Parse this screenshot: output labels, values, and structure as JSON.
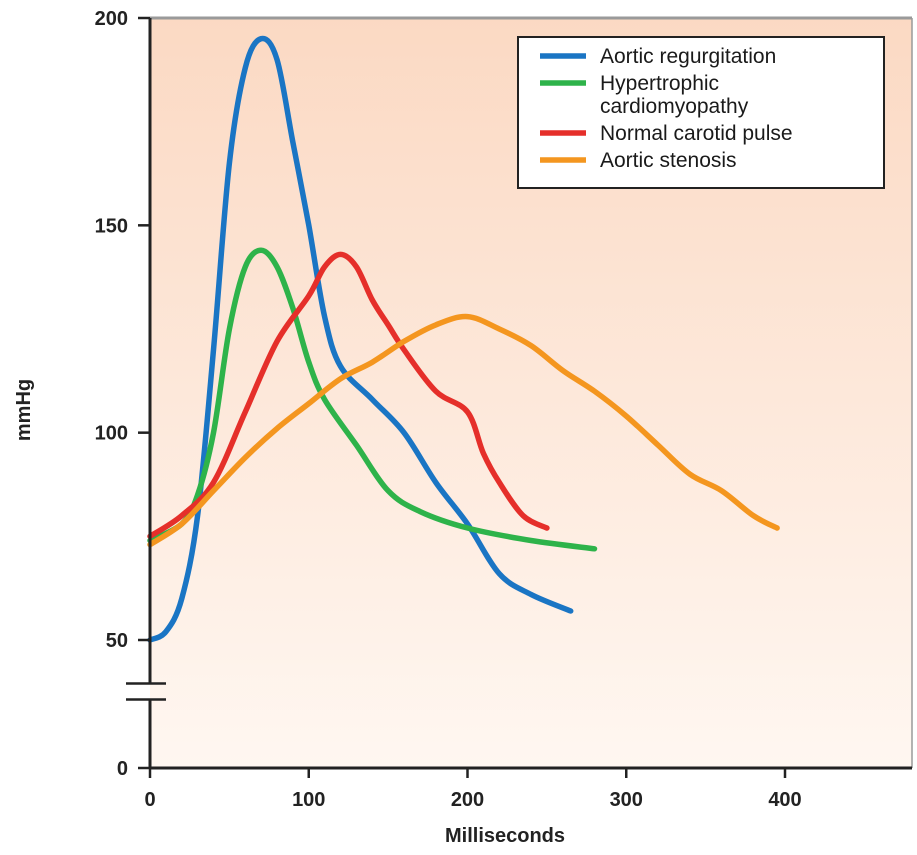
{
  "chart_data": {
    "type": "line",
    "title": "",
    "xlabel": "Milliseconds",
    "ylabel": "mmHg",
    "xlim": [
      0,
      480
    ],
    "ylim": [
      0,
      200
    ],
    "y_axis_break": [
      25,
      40
    ],
    "x_ticks": [
      0,
      100,
      200,
      300,
      400
    ],
    "y_ticks": [
      0,
      50,
      100,
      150,
      200
    ],
    "grid": false,
    "legend_position": "top-right",
    "background": [
      "#fbd9c3",
      "#fff7f1"
    ],
    "series": [
      {
        "name": "Aortic regurgitation",
        "color": "#1a75c4",
        "points": [
          [
            0,
            50
          ],
          [
            10,
            52
          ],
          [
            20,
            60
          ],
          [
            30,
            80
          ],
          [
            40,
            120
          ],
          [
            50,
            165
          ],
          [
            60,
            188
          ],
          [
            70,
            195
          ],
          [
            80,
            190
          ],
          [
            90,
            170
          ],
          [
            100,
            150
          ],
          [
            110,
            128
          ],
          [
            120,
            116
          ],
          [
            140,
            108
          ],
          [
            160,
            100
          ],
          [
            180,
            88
          ],
          [
            200,
            78
          ],
          [
            220,
            66
          ],
          [
            240,
            61
          ],
          [
            265,
            57
          ]
        ]
      },
      {
        "name": "Hypertrophic cardiomyopathy",
        "color": "#2eb34a",
        "points": [
          [
            0,
            74
          ],
          [
            20,
            78
          ],
          [
            30,
            85
          ],
          [
            40,
            100
          ],
          [
            50,
            125
          ],
          [
            60,
            140
          ],
          [
            70,
            144
          ],
          [
            80,
            140
          ],
          [
            90,
            130
          ],
          [
            100,
            117
          ],
          [
            110,
            108
          ],
          [
            130,
            97
          ],
          [
            150,
            86
          ],
          [
            170,
            81
          ],
          [
            200,
            77
          ],
          [
            240,
            74
          ],
          [
            280,
            72
          ]
        ]
      },
      {
        "name": "Normal carotid pulse",
        "color": "#e52f2a",
        "points": [
          [
            0,
            75
          ],
          [
            20,
            80
          ],
          [
            40,
            88
          ],
          [
            60,
            105
          ],
          [
            80,
            122
          ],
          [
            100,
            133
          ],
          [
            110,
            140
          ],
          [
            120,
            143
          ],
          [
            130,
            140
          ],
          [
            140,
            132
          ],
          [
            150,
            126
          ],
          [
            160,
            120
          ],
          [
            180,
            110
          ],
          [
            200,
            105
          ],
          [
            210,
            95
          ],
          [
            220,
            88
          ],
          [
            235,
            80
          ],
          [
            250,
            77
          ]
        ]
      },
      {
        "name": "Aortic stenosis",
        "color": "#f4961f",
        "points": [
          [
            0,
            73
          ],
          [
            20,
            78
          ],
          [
            40,
            86
          ],
          [
            60,
            94
          ],
          [
            80,
            101
          ],
          [
            100,
            107
          ],
          [
            120,
            113
          ],
          [
            140,
            117
          ],
          [
            160,
            122
          ],
          [
            180,
            126
          ],
          [
            200,
            128
          ],
          [
            220,
            125
          ],
          [
            240,
            121
          ],
          [
            260,
            115
          ],
          [
            280,
            110
          ],
          [
            300,
            104
          ],
          [
            320,
            97
          ],
          [
            340,
            90
          ],
          [
            360,
            86
          ],
          [
            380,
            80
          ],
          [
            395,
            77
          ]
        ]
      }
    ],
    "legend_entries": [
      {
        "lines": [
          "Aortic regurgitation"
        ],
        "color": "#1a75c4"
      },
      {
        "lines": [
          "Hypertrophic",
          "cardiomyopathy"
        ],
        "color": "#2eb34a"
      },
      {
        "lines": [
          "Normal carotid pulse"
        ],
        "color": "#e52f2a"
      },
      {
        "lines": [
          "Aortic stenosis"
        ],
        "color": "#f4961f"
      }
    ]
  }
}
